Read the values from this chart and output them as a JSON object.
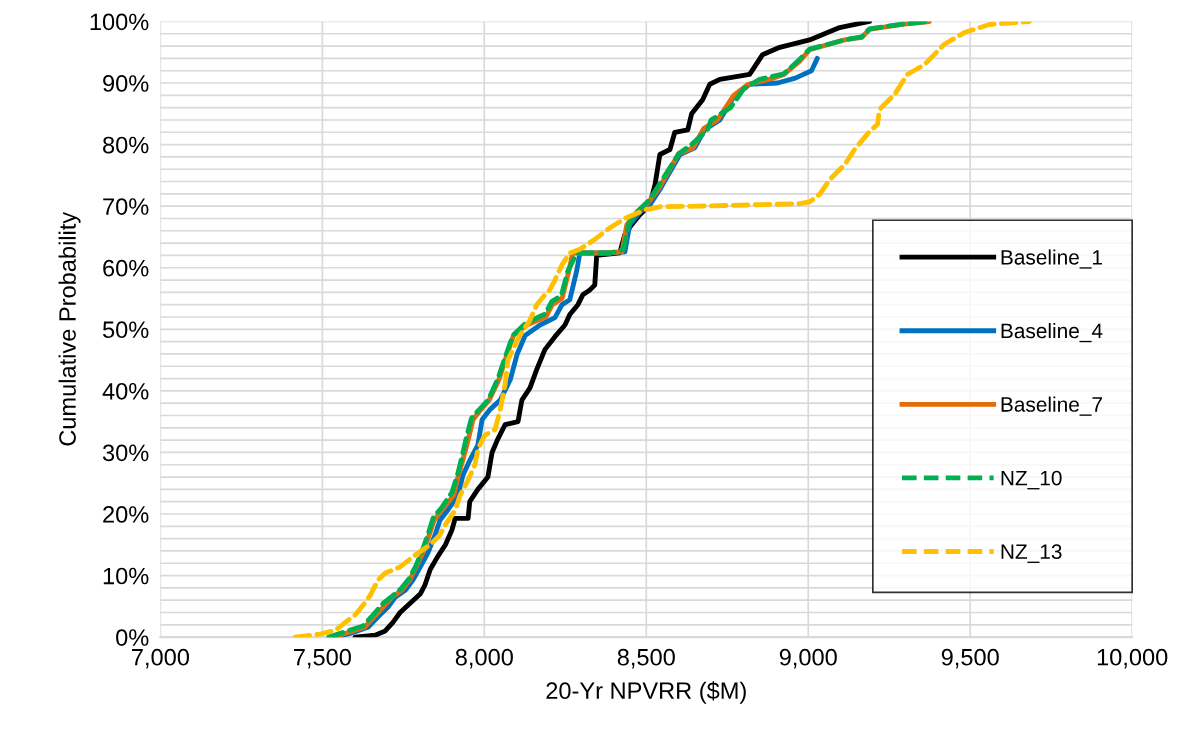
{
  "chart_data": {
    "type": "line",
    "xlabel": "20-Yr NPVRR ($M)",
    "ylabel": "Cumulative Probability",
    "xlim": [
      7000,
      10000
    ],
    "xticks": [
      {
        "value": 7000,
        "label": "7,000"
      },
      {
        "value": 7500,
        "label": "7,500"
      },
      {
        "value": 8000,
        "label": "8,000"
      },
      {
        "value": 8500,
        "label": "8,500"
      },
      {
        "value": 9000,
        "label": "9,000"
      },
      {
        "value": 9500,
        "label": "9,500"
      },
      {
        "value": 10000,
        "label": "10,000"
      }
    ],
    "ylim": [
      0,
      100
    ],
    "yticks": [
      {
        "value": 0,
        "label": "0%"
      },
      {
        "value": 2,
        "label": null
      },
      {
        "value": 4,
        "label": null
      },
      {
        "value": 6,
        "label": null
      },
      {
        "value": 8,
        "label": null
      },
      {
        "value": 10,
        "label": "10%"
      },
      {
        "value": 12,
        "label": null
      },
      {
        "value": 14,
        "label": null
      },
      {
        "value": 16,
        "label": null
      },
      {
        "value": 18,
        "label": null
      },
      {
        "value": 20,
        "label": "20%"
      },
      {
        "value": 22,
        "label": null
      },
      {
        "value": 24,
        "label": null
      },
      {
        "value": 26,
        "label": null
      },
      {
        "value": 28,
        "label": null
      },
      {
        "value": 30,
        "label": "30%"
      },
      {
        "value": 32,
        "label": null
      },
      {
        "value": 34,
        "label": null
      },
      {
        "value": 36,
        "label": null
      },
      {
        "value": 38,
        "label": null
      },
      {
        "value": 40,
        "label": "40%"
      },
      {
        "value": 42,
        "label": null
      },
      {
        "value": 44,
        "label": null
      },
      {
        "value": 46,
        "label": null
      },
      {
        "value": 48,
        "label": null
      },
      {
        "value": 50,
        "label": "50%"
      },
      {
        "value": 52,
        "label": null
      },
      {
        "value": 54,
        "label": null
      },
      {
        "value": 56,
        "label": null
      },
      {
        "value": 58,
        "label": null
      },
      {
        "value": 60,
        "label": "60%"
      },
      {
        "value": 62,
        "label": null
      },
      {
        "value": 64,
        "label": null
      },
      {
        "value": 66,
        "label": null
      },
      {
        "value": 68,
        "label": null
      },
      {
        "value": 70,
        "label": "70%"
      },
      {
        "value": 72,
        "label": null
      },
      {
        "value": 74,
        "label": null
      },
      {
        "value": 76,
        "label": null
      },
      {
        "value": 78,
        "label": null
      },
      {
        "value": 80,
        "label": "80%"
      },
      {
        "value": 82,
        "label": null
      },
      {
        "value": 84,
        "label": null
      },
      {
        "value": 86,
        "label": null
      },
      {
        "value": 88,
        "label": null
      },
      {
        "value": 90,
        "label": "90%"
      },
      {
        "value": 92,
        "label": null
      },
      {
        "value": 94,
        "label": null
      },
      {
        "value": 96,
        "label": null
      },
      {
        "value": 98,
        "label": null
      },
      {
        "value": 100,
        "label": "100%"
      }
    ],
    "grid": true,
    "legend": "right",
    "marker": "none",
    "series": [
      {
        "name": "Baseline_1",
        "color": "#000000",
        "line_style": "solid",
        "x": [
          7601,
          7663,
          7694,
          7718,
          7740,
          7771,
          7802,
          7817,
          7833,
          7855,
          7880,
          7900,
          7910,
          7950,
          7955,
          7980,
          8011,
          8024,
          8040,
          8064,
          8104,
          8116,
          8141,
          8162,
          8187,
          8218,
          8249,
          8264,
          8289,
          8304,
          8326,
          8341,
          8347,
          8418,
          8434,
          8455,
          8480,
          8511,
          8527,
          8542,
          8573,
          8588,
          8628,
          8640,
          8674,
          8696,
          8727,
          8819,
          8859,
          8912,
          9004,
          9097,
          9189
        ],
        "values": [
          0,
          0.3,
          1,
          2.4,
          4,
          5.5,
          7,
          8.5,
          11,
          13,
          15,
          17.4,
          19.3,
          19.3,
          22,
          24,
          26,
          30,
          32,
          34.5,
          35,
          38.5,
          40.5,
          43.5,
          46.7,
          48.8,
          50.7,
          52.4,
          54,
          55.6,
          56.4,
          57.2,
          62,
          62.4,
          65.4,
          67,
          68.6,
          70.2,
          73.5,
          78.4,
          79.2,
          82,
          82.4,
          85,
          87.3,
          89.8,
          90.6,
          91.4,
          94.6,
          95.8,
          97,
          99,
          100
        ]
      },
      {
        "name": "Baseline_4",
        "color": "#0070c0",
        "line_style": "solid",
        "x": [
          7540,
          7586,
          7641,
          7672,
          7703,
          7725,
          7756,
          7780,
          7802,
          7826,
          7848,
          7863,
          7888,
          7919,
          7934,
          7956,
          7980,
          7993,
          8018,
          8049,
          8080,
          8101,
          8126,
          8172,
          8218,
          8240,
          8264,
          8286,
          8295,
          8388,
          8434,
          8449,
          8480,
          8511,
          8542,
          8567,
          8604,
          8650,
          8680,
          8727,
          8773,
          8819,
          8905,
          8960,
          9010,
          9028
        ],
        "values": [
          0,
          0.6,
          1.6,
          3.3,
          4.9,
          6.5,
          7.6,
          9.3,
          11.4,
          13.7,
          16.6,
          19,
          20.7,
          23,
          26.3,
          28.8,
          31.2,
          35.3,
          37,
          38.5,
          41.8,
          45.9,
          49,
          50.7,
          51.9,
          54,
          54.8,
          59.7,
          62.4,
          62.4,
          62.6,
          67,
          69,
          70.2,
          72.7,
          75,
          78.4,
          79.5,
          82.4,
          84,
          88,
          89.8,
          90,
          90.8,
          92,
          94
        ]
      },
      {
        "name": "Baseline_7",
        "color": "#e46c0a",
        "line_style": "solid",
        "x": [
          7524,
          7570,
          7630,
          7660,
          7690,
          7715,
          7745,
          7770,
          7790,
          7810,
          7830,
          7845,
          7870,
          7905,
          7920,
          7935,
          7950,
          7965,
          7990,
          8015,
          8045,
          8070,
          8090,
          8130,
          8190,
          8210,
          8240,
          8262,
          8273,
          8388,
          8425,
          8440,
          8470,
          8505,
          8540,
          8565,
          8600,
          8645,
          8677,
          8720,
          8770,
          8815,
          8880,
          8925,
          8973,
          9004,
          9112,
          9165,
          9189,
          9282,
          9374
        ],
        "values": [
          0,
          0.6,
          1.6,
          3.3,
          5,
          6.5,
          7.6,
          9.3,
          11.4,
          13.7,
          16.6,
          19,
          20.7,
          23,
          26.3,
          29,
          32,
          35.3,
          37,
          38.5,
          41.8,
          45.9,
          49,
          50.7,
          52,
          54,
          55,
          59.7,
          62.4,
          62.4,
          62.6,
          67,
          69,
          70.5,
          73,
          75.3,
          78.5,
          79.5,
          82.6,
          84,
          88,
          89.8,
          90.6,
          91.4,
          93.5,
          95.4,
          97,
          97.4,
          98.7,
          99.5,
          100
        ]
      },
      {
        "name": "NZ_10",
        "color": "#00b050",
        "line_style": "dashed",
        "x": [
          7520,
          7565,
          7625,
          7655,
          7688,
          7712,
          7742,
          7768,
          7788,
          7808,
          7828,
          7843,
          7868,
          7900,
          7918,
          7932,
          7945,
          7960,
          7985,
          8012,
          8042,
          8068,
          8088,
          8128,
          8188,
          8208,
          8238,
          8258,
          8286,
          8390,
          8430,
          8445,
          8470,
          8510,
          8540,
          8570,
          8600,
          8640,
          8690,
          8700,
          8760,
          8800,
          8850,
          8925,
          8973,
          9004,
          9112,
          9165,
          9189,
          9282,
          9374
        ],
        "values": [
          0,
          0.8,
          1.8,
          3.5,
          5.5,
          6.5,
          7.8,
          9.5,
          11.5,
          14,
          17,
          19.5,
          21,
          23.5,
          26.5,
          29.5,
          32.5,
          35.5,
          37,
          38.5,
          42,
          46,
          49,
          51,
          52.5,
          54.5,
          55.5,
          59.5,
          62.4,
          62.4,
          63,
          67,
          69,
          71,
          73.5,
          76,
          78.5,
          80,
          82.5,
          84,
          86,
          89,
          90.6,
          91.5,
          93.8,
          95.5,
          97,
          97.5,
          98.8,
          99.5,
          100
        ]
      },
      {
        "name": "NZ_13",
        "color": "#ffc000",
        "line_style": "dashed",
        "x": [
          7416,
          7493,
          7540,
          7571,
          7601,
          7626,
          7648,
          7672,
          7694,
          7740,
          7786,
          7833,
          7863,
          7879,
          7910,
          7925,
          7950,
          7971,
          7981,
          8002,
          8033,
          8049,
          8064,
          8073,
          8095,
          8110,
          8141,
          8162,
          8187,
          8202,
          8218,
          8240,
          8264,
          8295,
          8341,
          8388,
          8434,
          8495,
          8542,
          8665,
          8973,
          9004,
          9035,
          9066,
          9112,
          9143,
          9189,
          9214,
          9220,
          9266,
          9306,
          9359,
          9420,
          9482,
          9559,
          9683
        ],
        "values": [
          0,
          0.5,
          1.1,
          2.4,
          3.6,
          5.2,
          6.8,
          9.3,
          10.4,
          11.4,
          13.3,
          15,
          16.6,
          18.2,
          20.6,
          23,
          25.5,
          28,
          30.7,
          32.8,
          33.7,
          36.9,
          41,
          45,
          47.5,
          49,
          51.5,
          54,
          55.6,
          56.4,
          58,
          60.5,
          62.4,
          63,
          64.6,
          66.5,
          68,
          69.4,
          69.9,
          70,
          70.4,
          70.7,
          71.9,
          74.3,
          76.7,
          79.2,
          82.1,
          83.3,
          85.7,
          88.1,
          91.4,
          93,
          96.3,
          98.2,
          99.5,
          100
        ]
      }
    ]
  }
}
